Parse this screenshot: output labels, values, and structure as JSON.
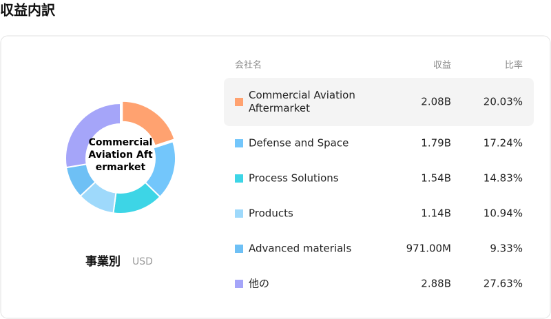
{
  "chart_data": {
    "type": "donut",
    "title": "収益内訳",
    "subtitle": "事業別",
    "unit": "USD",
    "center_label": "Commercial Aviation Aftermarket",
    "categories": [
      "Commercial Aviation Aftermarket",
      "Defense and Space",
      "Process Solutions",
      "Products",
      "Advanced materials",
      "他の"
    ],
    "values": [
      20.03,
      17.24,
      14.83,
      10.94,
      9.33,
      27.63
    ],
    "value_labels": [
      "20.03%",
      "17.24%",
      "14.83%",
      "10.94%",
      "9.33%",
      "27.63%"
    ],
    "colors": [
      "#ffa270",
      "#73c6fb",
      "#3dd5e6",
      "#9ed9fb",
      "#6ec0f5",
      "#a5a5f9"
    ],
    "highlight": 0,
    "table": {
      "headers": [
        "会社名",
        "収益",
        "比率"
      ],
      "revenue_labels": [
        "2.08B",
        "1.79B",
        "1.54B",
        "1.14B",
        "971.00M",
        "2.88B"
      ]
    }
  }
}
